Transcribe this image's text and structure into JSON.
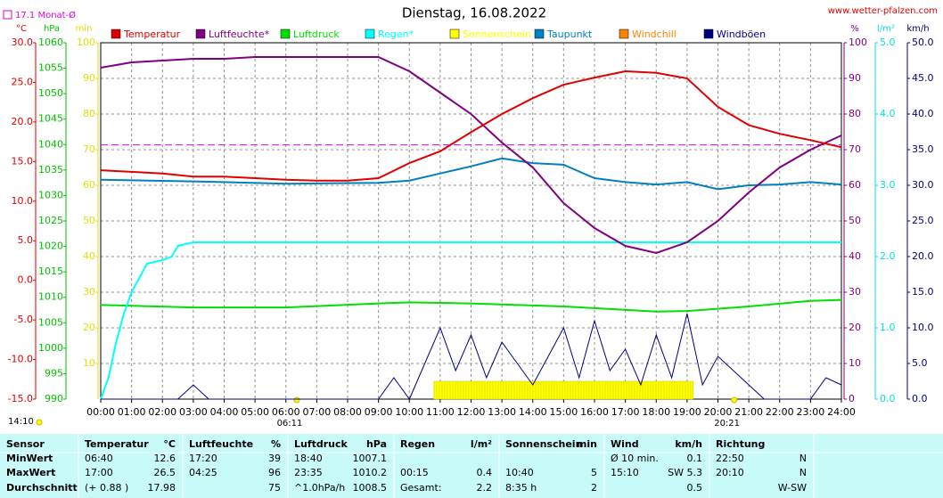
{
  "chart_data": {
    "type": "line",
    "title": "Dienstag, 16.08.2022",
    "site": "www.wetter-pfalzen.com",
    "time_label": "14:10",
    "month_avg": {
      "label": "17.1 Monat-Ø",
      "value": 17.1,
      "color": "#e000e0"
    },
    "sunrise": {
      "label": "06:11",
      "value": 6.18
    },
    "sunset": {
      "label": "20:21",
      "value": 20.35
    },
    "grid": true,
    "xlim": [
      0,
      24
    ],
    "xticks": [
      {
        "value": 0,
        "label": "00:00"
      },
      {
        "value": 1,
        "label": "01:00"
      },
      {
        "value": 2,
        "label": "02:00"
      },
      {
        "value": 3,
        "label": "03:00"
      },
      {
        "value": 4,
        "label": "04:00"
      },
      {
        "value": 5,
        "label": "05:00"
      },
      {
        "value": 6,
        "label": "06:00"
      },
      {
        "value": 7,
        "label": "07:00"
      },
      {
        "value": 8,
        "label": "08:00"
      },
      {
        "value": 9,
        "label": "09:00"
      },
      {
        "value": 10,
        "label": "10:00"
      },
      {
        "value": 11,
        "label": "11:00"
      },
      {
        "value": 12,
        "label": "12:00"
      },
      {
        "value": 13,
        "label": "13:00"
      },
      {
        "value": 14,
        "label": "14:00"
      },
      {
        "value": 15,
        "label": "15:00"
      },
      {
        "value": 16,
        "label": "16:00"
      },
      {
        "value": 17,
        "label": "17:00"
      },
      {
        "value": 18,
        "label": "18:00"
      },
      {
        "value": 19,
        "label": "19:00"
      },
      {
        "value": 20,
        "label": "20:00"
      },
      {
        "value": 21,
        "label": "21:00"
      },
      {
        "value": 22,
        "label": "22:00"
      },
      {
        "value": 23,
        "label": "23:00"
      },
      {
        "value": 24,
        "label": "24:00"
      }
    ],
    "ylabel": "°C",
    "ycolor": "#e00000",
    "yside": "left",
    "ylim": [
      -15,
      30
    ],
    "yticks": [
      {
        "value": 30,
        "label": "30.0"
      },
      {
        "value": 25,
        "label": "25.0"
      },
      {
        "value": 20,
        "label": "20.0"
      },
      {
        "value": 15,
        "label": "15.0"
      },
      {
        "value": 10,
        "label": "10.0"
      },
      {
        "value": 5,
        "label": "5.0"
      },
      {
        "value": 0,
        "label": "0.0"
      },
      {
        "value": -5,
        "label": "-5.0"
      },
      {
        "value": -10,
        "label": "-10.0"
      },
      {
        "value": -15,
        "label": "-15.0"
      }
    ],
    "y2label": "hPa",
    "y2color": "#00c000",
    "y2side": "left",
    "y2lim": [
      990,
      1060
    ],
    "y2ticks": [
      1060,
      1055,
      1050,
      1045,
      1040,
      1035,
      1030,
      1025,
      1020,
      1015,
      1010,
      1005,
      1000,
      995,
      990
    ],
    "y3label": "min",
    "y3color": "#e0e000",
    "y3side": "left",
    "y3lim": [
      0,
      100
    ],
    "y3ticks": [
      100,
      90,
      80,
      70,
      60,
      50,
      40,
      30,
      20,
      10
    ],
    "y4label": "%",
    "y4color": "#800080",
    "y4side": "right",
    "y4lim": [
      0,
      100
    ],
    "y4ticks": [
      100,
      90,
      80,
      70,
      60,
      50,
      40,
      30,
      20,
      10,
      0
    ],
    "y5label": "l/m²",
    "y5color": "#00e0e0",
    "y5side": "right",
    "y5lim": [
      0,
      5
    ],
    "y5ticks": [
      {
        "value": 5,
        "label": "5.0"
      },
      {
        "value": 4,
        "label": "4.0"
      },
      {
        "value": 3,
        "label": "3.0"
      },
      {
        "value": 2,
        "label": "2.0"
      },
      {
        "value": 1,
        "label": "1.0"
      },
      {
        "value": 0,
        "label": "0.0"
      }
    ],
    "y6label": "km/h",
    "y6color": "#000080",
    "y6side": "right",
    "y6lim": [
      0,
      50
    ],
    "y6ticks": [
      {
        "value": 50,
        "label": "50.0"
      },
      {
        "value": 45,
        "label": "45.0"
      },
      {
        "value": 40,
        "label": "40.0"
      },
      {
        "value": 35,
        "label": "35.0"
      },
      {
        "value": 30,
        "label": "30.0"
      },
      {
        "value": 25,
        "label": "25.0"
      },
      {
        "value": 20,
        "label": "20.0"
      },
      {
        "value": 15,
        "label": "15.0"
      },
      {
        "value": 10,
        "label": "10.0"
      },
      {
        "value": 5,
        "label": "5.0"
      },
      {
        "value": 0,
        "label": "0.0"
      }
    ],
    "series": [
      {
        "name": "Temperatur",
        "color": "#e00000",
        "axis": "y",
        "x": [
          0,
          1,
          2,
          3,
          4,
          5,
          6,
          7,
          8,
          9,
          10,
          11,
          12,
          13,
          14,
          15,
          16,
          17,
          18,
          19,
          20,
          21,
          22,
          23,
          24
        ],
        "values": [
          13.9,
          13.7,
          13.5,
          13.1,
          13.1,
          12.9,
          12.7,
          12.6,
          12.6,
          12.9,
          14.8,
          16.3,
          18.7,
          21.0,
          23.0,
          24.7,
          25.6,
          26.4,
          26.2,
          25.5,
          21.9,
          19.6,
          18.5,
          17.7,
          16.8
        ]
      },
      {
        "name": "Luftfeuchte*",
        "color": "#800080",
        "axis": "y4",
        "x": [
          0,
          1,
          2,
          3,
          4,
          5,
          6,
          7,
          8,
          9,
          10,
          11,
          12,
          13,
          14,
          15,
          16,
          17,
          18,
          19,
          20,
          21,
          22,
          23,
          24
        ],
        "values": [
          93,
          94.5,
          95,
          95.5,
          95.5,
          96,
          96,
          96,
          96,
          96,
          92,
          86,
          80,
          72,
          65,
          55,
          48,
          43,
          41,
          44,
          50,
          58,
          65,
          70,
          74
        ]
      },
      {
        "name": "Luftdruck",
        "color": "#00e000",
        "axis": "y2",
        "x": [
          0,
          3,
          6,
          9,
          10,
          12,
          15,
          18,
          19,
          21,
          23,
          24
        ],
        "values": [
          1008.5,
          1008.0,
          1008.0,
          1008.8,
          1009.0,
          1008.8,
          1008.2,
          1007.2,
          1007.3,
          1008.2,
          1009.3,
          1009.5
        ]
      },
      {
        "name": "Regen*",
        "color": "#00ffff",
        "axis": "y5",
        "x": [
          0,
          0.25,
          0.5,
          0.75,
          1,
          1.5,
          2,
          2.3,
          2.5,
          3,
          24
        ],
        "values": [
          0,
          0.3,
          0.8,
          1.2,
          1.5,
          1.9,
          1.95,
          2.0,
          2.15,
          2.2,
          2.2
        ]
      },
      {
        "name": "Sonnenschein",
        "color": "#ffff00",
        "axis": "y3",
        "x": [
          10.8,
          19.2
        ],
        "values": [
          5,
          5
        ]
      },
      {
        "name": "Taupunkt",
        "color": "#0080c0",
        "axis": "y",
        "x": [
          0,
          3,
          6,
          9,
          10,
          11,
          12,
          13,
          14,
          15,
          16,
          17,
          18,
          19,
          20,
          21,
          22,
          23,
          24
        ],
        "values": [
          12.7,
          12.5,
          12.2,
          12.3,
          12.6,
          13.5,
          14.4,
          15.4,
          14.8,
          14.6,
          12.9,
          12.4,
          12.1,
          12.4,
          11.5,
          12.0,
          12.1,
          12.4,
          12.1
        ]
      },
      {
        "name": "Windchill",
        "color": "#ff8000",
        "axis": "y",
        "x": [],
        "values": []
      },
      {
        "name": "Windböen",
        "color": "#000080",
        "axis": "y6",
        "x": [
          0,
          0.5,
          1,
          1.5,
          2,
          2.5,
          3,
          3.5,
          4,
          4.5,
          5,
          5.5,
          6,
          6.5,
          7,
          7.5,
          8,
          8.5,
          9,
          9.5,
          10,
          10.5,
          11,
          11.5,
          12,
          12.5,
          13,
          13.5,
          14,
          14.5,
          15,
          15.5,
          16,
          16.5,
          17,
          17.5,
          18,
          18.5,
          19,
          19.5,
          20,
          20.5,
          21,
          21.5,
          22,
          22.5,
          23,
          23.5,
          24
        ],
        "values": [
          0,
          0,
          0,
          0,
          0,
          0,
          2,
          0,
          0,
          0,
          0,
          0,
          0,
          0,
          0,
          0,
          0,
          0,
          0,
          3,
          0,
          5,
          10,
          4,
          9,
          3,
          8,
          5,
          2,
          6,
          10,
          3,
          11,
          4,
          7,
          2,
          9,
          3,
          12,
          2,
          6,
          4,
          2,
          0,
          0,
          0,
          0,
          3,
          2
        ]
      }
    ]
  },
  "table": {
    "header": [
      [
        "Sensor"
      ],
      [
        "Temperatur",
        "°C"
      ],
      [
        "Luftfeuchte",
        "%"
      ],
      [
        "Luftdruck",
        "hPa"
      ],
      [
        "Regen",
        "l/m²"
      ],
      [
        "Sonnenschein",
        "min"
      ],
      [
        "Wind",
        "km/h"
      ],
      [
        "Richtung"
      ]
    ],
    "rows": [
      {
        "label": "MinWert",
        "cells": [
          [
            "06:40",
            "12.6"
          ],
          [
            "17:20",
            "39"
          ],
          [
            "18:40",
            "1007.1"
          ],
          [
            null,
            null
          ],
          [
            null,
            null
          ],
          [
            "Ø 10 min.",
            "0.1"
          ],
          [
            "22:50",
            "N"
          ]
        ]
      },
      {
        "label": "MaxWert",
        "cells": [
          [
            "17:00",
            "26.5"
          ],
          [
            "04:25",
            "96"
          ],
          [
            "23:35",
            "1010.2"
          ],
          [
            "00:15",
            "0.4"
          ],
          [
            "10:40",
            "5"
          ],
          [
            "15:10",
            "SW 5.3"
          ],
          [
            "20:10",
            "N"
          ]
        ]
      },
      {
        "label": "Durchschnitt",
        "cells": [
          [
            "(+ 0.88 )",
            "17.98"
          ],
          [
            null,
            "75"
          ],
          [
            "^1.0hPa/h",
            "1008.5"
          ],
          [
            "Gesamt:",
            "2.2"
          ],
          [
            "8:35 h",
            "2"
          ],
          [
            null,
            "0.5"
          ],
          [
            null,
            "W-SW"
          ]
        ]
      }
    ]
  }
}
